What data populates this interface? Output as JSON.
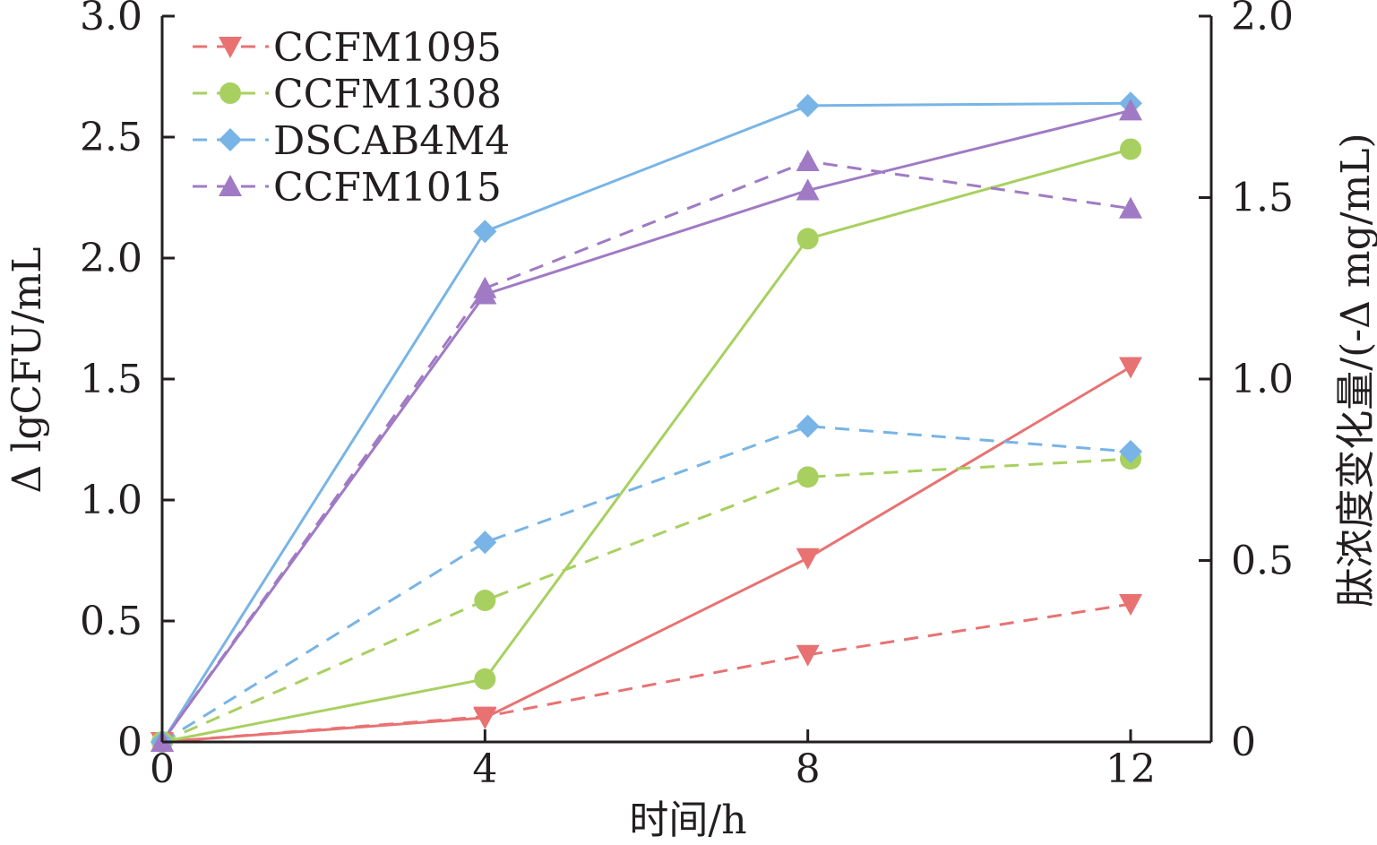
{
  "chart_data": {
    "type": "line",
    "xlabel": "时间/h",
    "ylabel_left": "Δ lgCFU/mL",
    "ylabel_right": "肽浓度变化量/(-Δ mg/mL)",
    "x_ticks": [
      "0",
      "4",
      "8",
      "12"
    ],
    "xlim": [
      0,
      13
    ],
    "ylim_left": [
      0,
      3.0
    ],
    "ylim_right": [
      0,
      2.0
    ],
    "y_ticks_left": [
      "0",
      "0.5",
      "1.0",
      "1.5",
      "2.0",
      "2.5",
      "3.0"
    ],
    "y_ticks_right": [
      "0",
      "0.5",
      "1.0",
      "1.5",
      "2.0"
    ],
    "x": [
      0,
      4,
      8,
      12
    ],
    "legend_position": "top-left",
    "grid": false,
    "series": [
      {
        "name": "CCFM1095",
        "color": "#e87272",
        "marker": "triangle-down",
        "solid_left_axis": [
          0,
          0.1,
          0.76,
          1.55
        ],
        "dashed_right_axis": [
          0,
          0.07,
          0.24,
          0.38
        ]
      },
      {
        "name": "CCFM1308",
        "color": "#a8d060",
        "marker": "circle",
        "solid_left_axis": [
          0,
          0.26,
          2.08,
          2.45
        ],
        "dashed_right_axis": [
          0,
          0.39,
          0.73,
          0.78
        ]
      },
      {
        "name": "DSCAB4M4",
        "color": "#78b4e6",
        "marker": "diamond",
        "solid_left_axis": [
          0,
          2.11,
          2.63,
          2.64
        ],
        "dashed_right_axis": [
          0,
          0.55,
          0.87,
          0.8
        ]
      },
      {
        "name": "CCFM1015",
        "color": "#a07ac4",
        "marker": "triangle-up",
        "solid_left_axis": [
          0,
          1.85,
          2.28,
          2.61
        ],
        "dashed_right_axis": [
          0,
          1.25,
          1.6,
          1.47
        ]
      }
    ]
  }
}
